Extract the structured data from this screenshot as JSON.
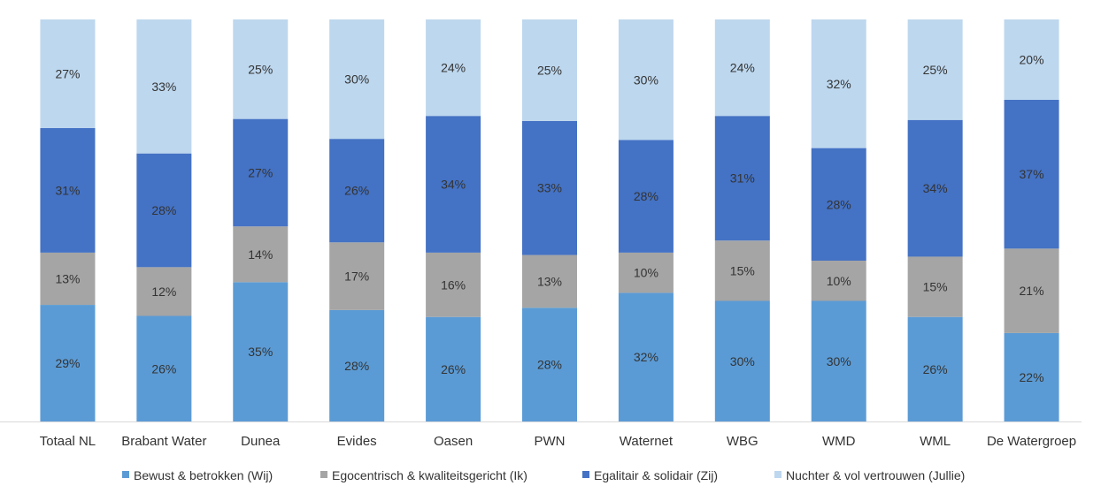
{
  "chart_data": {
    "type": "bar",
    "stacked": true,
    "categories": [
      "Totaal NL",
      "Brabant Water",
      "Dunea",
      "Evides",
      "Oasen",
      "PWN",
      "Waternet",
      "WBG",
      "WMD",
      "WML",
      "De Watergroep"
    ],
    "series": [
      {
        "name": "Bewust & betrokken (Wij)",
        "color": "#5b9bd5",
        "values": [
          29,
          26,
          35,
          28,
          26,
          28,
          32,
          30,
          30,
          26,
          22
        ],
        "labels": [
          "29%",
          "26%",
          "35%",
          "28%",
          "26%",
          "28%",
          "32%",
          "30%",
          "30%",
          "26%",
          "22%"
        ]
      },
      {
        "name": "Egocentrisch & kwaliteitsgericht (Ik)",
        "color": "#a5a5a5",
        "values": [
          13,
          12,
          14,
          17,
          16,
          13,
          10,
          15,
          10,
          15,
          21
        ],
        "labels": [
          "13%",
          "12%",
          "14%",
          "17%",
          "16%",
          "13%",
          "10%",
          "15%",
          "10%",
          "15%",
          "21%"
        ]
      },
      {
        "name": "Egalitair & solidair (Zij)",
        "color": "#4472c4",
        "values": [
          31,
          28,
          27,
          26,
          34,
          33,
          28,
          31,
          28,
          34,
          37
        ],
        "labels": [
          "31%",
          "28%",
          "27%",
          "26%",
          "34%",
          "33%",
          "28%",
          "31%",
          "28%",
          "34%",
          "37%"
        ]
      },
      {
        "name": "Nuchter & vol vertrouwen (Jullie)",
        "color": "#bdd7ee",
        "values": [
          27,
          33,
          25,
          30,
          24,
          25,
          30,
          24,
          32,
          25,
          20
        ],
        "labels": [
          "27%",
          "33%",
          "25%",
          "30%",
          "24%",
          "25%",
          "30%",
          "24%",
          "32%",
          "25%",
          "20%"
        ]
      }
    ],
    "legend_position": "bottom",
    "grid": false,
    "axis_line_color": "#d9d9d9"
  }
}
